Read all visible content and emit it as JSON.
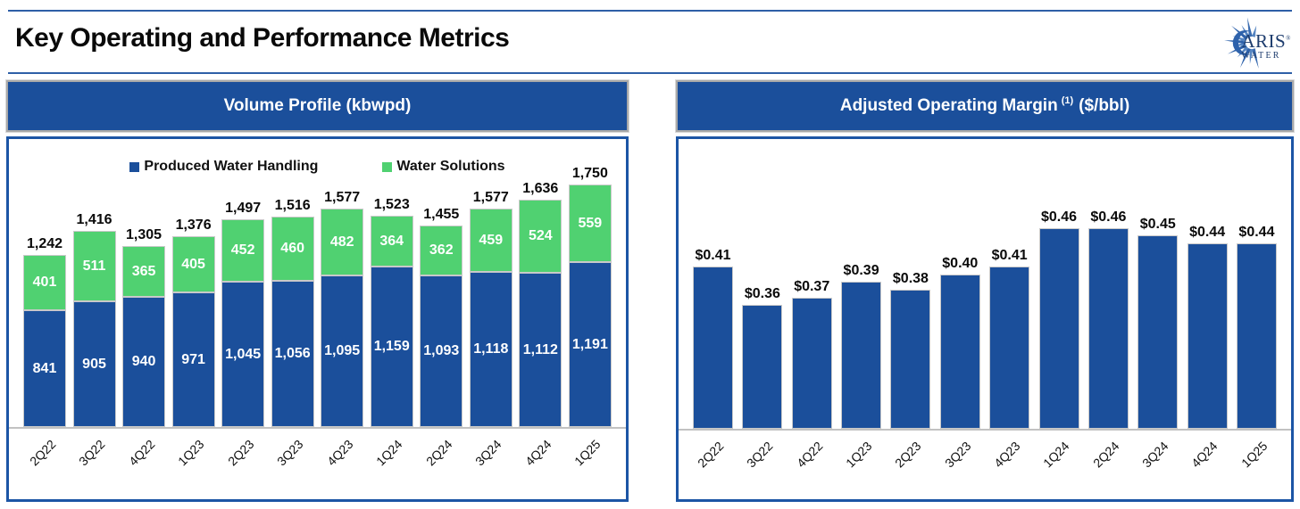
{
  "page": {
    "title": "Key Operating and Performance Metrics"
  },
  "logo": {
    "name_top": "ARIS",
    "mark": "®",
    "name_bottom": "WATER"
  },
  "panels": [
    {
      "header": {
        "main": "Volume Profile (kbwpd)",
        "sup": "",
        "suffix": ""
      }
    },
    {
      "header": {
        "main": "Adjusted Operating Margin",
        "sup": "(1)",
        "suffix": "($/bbl)"
      }
    }
  ],
  "colors": {
    "bar_blue": "#1b4f9b",
    "bar_green": "#50d171",
    "rule_blue": "#2e5fa7",
    "chart_border_blue": "#1c55a5"
  },
  "chart_data": [
    {
      "type": "bar",
      "variant": "stacked",
      "title": "Volume Profile (kbwpd)",
      "legend_position": "top",
      "categories": [
        "2Q22",
        "3Q22",
        "4Q22",
        "1Q23",
        "2Q23",
        "3Q23",
        "4Q23",
        "1Q24",
        "2Q24",
        "3Q24",
        "4Q24",
        "1Q25"
      ],
      "series": [
        {
          "name": "Produced Water Handling",
          "color": "#1b4f9b",
          "values": [
            841,
            905,
            940,
            971,
            1045,
            1056,
            1095,
            1159,
            1093,
            1118,
            1112,
            1191
          ],
          "labels": [
            "841",
            "905",
            "940",
            "971",
            "1,045",
            "1,056",
            "1,095",
            "1,159",
            "1,093",
            "1,118",
            "1,112",
            "1,191"
          ]
        },
        {
          "name": "Water Solutions",
          "color": "#50d171",
          "values": [
            401,
            511,
            365,
            405,
            452,
            460,
            482,
            364,
            362,
            459,
            524,
            559
          ],
          "labels": [
            "401",
            "511",
            "365",
            "405",
            "452",
            "460",
            "482",
            "364",
            "362",
            "459",
            "524",
            "559"
          ]
        }
      ],
      "totals": [
        1242,
        1416,
        1305,
        1376,
        1497,
        1516,
        1577,
        1523,
        1455,
        1577,
        1636,
        1750
      ],
      "total_labels": [
        "1,242",
        "1,416",
        "1,305",
        "1,376",
        "1,497",
        "1,516",
        "1,577",
        "1,523",
        "1,455",
        "1,577",
        "1,636",
        "1,750"
      ],
      "xlabel": "",
      "ylabel": "",
      "ylim": [
        0,
        1800
      ],
      "grid": false
    },
    {
      "type": "bar",
      "variant": "simple",
      "title": "Adjusted Operating Margin (1) ($/bbl)",
      "categories": [
        "2Q22",
        "3Q22",
        "4Q22",
        "1Q23",
        "2Q23",
        "3Q23",
        "4Q23",
        "1Q24",
        "2Q24",
        "3Q24",
        "4Q24",
        "1Q25"
      ],
      "values": [
        0.41,
        0.36,
        0.37,
        0.39,
        0.38,
        0.4,
        0.41,
        0.46,
        0.46,
        0.45,
        0.44,
        0.44
      ],
      "labels": [
        "$0.41",
        "$0.36",
        "$0.37",
        "$0.39",
        "$0.38",
        "$0.40",
        "$0.41",
        "$0.46",
        "$0.46",
        "$0.45",
        "$0.44",
        "$0.44"
      ],
      "bar_color": "#1b4f9b",
      "xlabel": "",
      "ylabel": "",
      "ylim": [
        0.2,
        0.5
      ],
      "grid": false
    }
  ]
}
